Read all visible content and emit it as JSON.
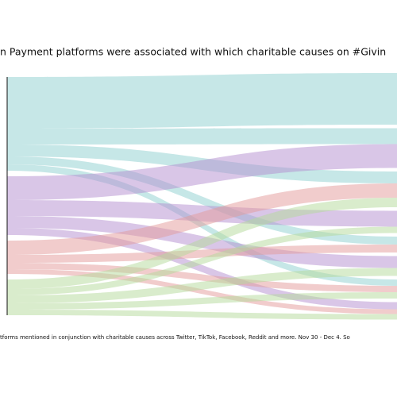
{
  "chart_data": {
    "type": "sankey",
    "title": "n Payment platforms were associated with which charitable causes on #Givin",
    "subtitle": "tforms mentioned in conjunction with charitable causes across Twitter, TikTok, Facebook, Reddit and more. Nov 30 - Dec 4. So",
    "source_colors": [
      "#8ecfcf",
      "#b48ed0",
      "#e39a9a",
      "#b4d99a"
    ],
    "links": [
      {
        "source": 0,
        "target": 0,
        "value": 65
      },
      {
        "source": 0,
        "target": 1,
        "value": 20
      },
      {
        "source": 0,
        "target": 2,
        "value": 15
      },
      {
        "source": 0,
        "target": 4,
        "value": 10
      },
      {
        "source": 0,
        "target": 6,
        "value": 8
      },
      {
        "source": 1,
        "target": 1,
        "value": 30
      },
      {
        "source": 1,
        "target": 3,
        "value": 20
      },
      {
        "source": 1,
        "target": 5,
        "value": 15
      },
      {
        "source": 1,
        "target": 7,
        "value": 9
      },
      {
        "source": 2,
        "target": 2,
        "value": 18
      },
      {
        "source": 2,
        "target": 4,
        "value": 10
      },
      {
        "source": 2,
        "target": 6,
        "value": 8
      },
      {
        "source": 2,
        "target": 7,
        "value": 6
      },
      {
        "source": 3,
        "target": 2,
        "value": 12
      },
      {
        "source": 3,
        "target": 3,
        "value": 8
      },
      {
        "source": 3,
        "target": 5,
        "value": 10
      },
      {
        "source": 3,
        "target": 6,
        "value": 8
      },
      {
        "source": 3,
        "target": 7,
        "value": 7
      }
    ]
  }
}
